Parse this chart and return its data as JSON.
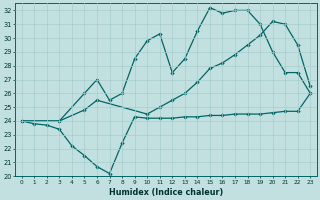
{
  "xlabel": "Humidex (Indice chaleur)",
  "bg_color": "#c2e0e0",
  "grid_color": "#a8cccc",
  "line_color": "#006666",
  "x_ticks": [
    0,
    1,
    2,
    3,
    4,
    5,
    6,
    7,
    8,
    9,
    10,
    11,
    12,
    13,
    14,
    15,
    16,
    17,
    18,
    19,
    20,
    21,
    22,
    23
  ],
  "ylim": [
    20,
    32.5
  ],
  "yticks": [
    20,
    21,
    22,
    23,
    24,
    25,
    26,
    27,
    28,
    29,
    30,
    31,
    32
  ],
  "line1_x": [
    0,
    1,
    2,
    3,
    4,
    5,
    6,
    7,
    8,
    9,
    10,
    11,
    12,
    13,
    14,
    15,
    16,
    17,
    18,
    19,
    20,
    21,
    22,
    23
  ],
  "line1_y": [
    24,
    23.8,
    23.7,
    23.4,
    22.2,
    21.5,
    20.7,
    20.2,
    22.4,
    24.3,
    24.2,
    24.2,
    24.2,
    24.3,
    24.3,
    24.4,
    24.4,
    24.5,
    24.5,
    24.5,
    24.6,
    24.7,
    24.7,
    26.0
  ],
  "line2_x": [
    0,
    3,
    5,
    6,
    7,
    8,
    9,
    10,
    11,
    12,
    13,
    14,
    15,
    16,
    17,
    18,
    19,
    20,
    21,
    22,
    23
  ],
  "line2_y": [
    24,
    24,
    26.0,
    27.0,
    25.5,
    26.0,
    28.5,
    29.8,
    30.3,
    27.5,
    28.5,
    30.5,
    32.2,
    31.8,
    32.0,
    32.0,
    31.0,
    29.0,
    27.5,
    27.5,
    26.0
  ],
  "line3_x": [
    0,
    3,
    5,
    6,
    10,
    11,
    12,
    13,
    14,
    15,
    16,
    17,
    18,
    19,
    20,
    21,
    22,
    23
  ],
  "line3_y": [
    24,
    24,
    24.8,
    25.5,
    24.5,
    25.0,
    25.5,
    26.0,
    26.8,
    27.8,
    28.2,
    28.8,
    29.5,
    30.2,
    31.2,
    31.0,
    29.5,
    26.5
  ]
}
